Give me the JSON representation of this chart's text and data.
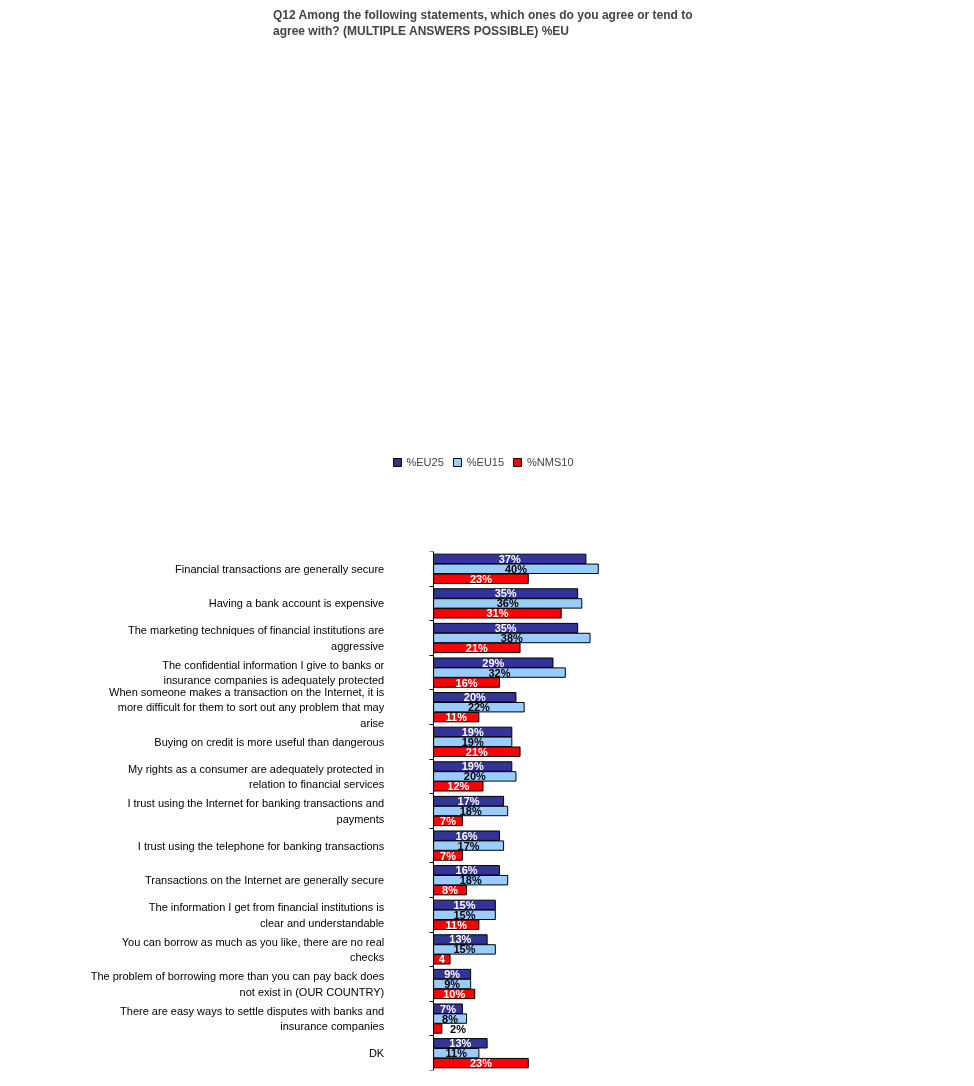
{
  "chart_data": {
    "type": "bar",
    "orientation": "horizontal",
    "title": "Q12 Among the following statements, which ones do you agree or tend to agree with? (MULTIPLE ANSWERS POSSIBLE) %EU",
    "legend": "top",
    "categories": [
      "Financial transactions are generally secure",
      "Having a bank account is expensive",
      "The marketing techniques of financial institutions are aggressive",
      "The confidential information I give to banks or insurance companies is adequately protected",
      "When someone makes a transaction on the Internet, it is more difficult for them to sort out any problem that may arise",
      "Buying on credit is more useful than dangerous",
      "My rights as a consumer are adequately protected in relation to financial services",
      "I trust using the Internet for banking transactions and payments",
      "I trust using the telephone for banking transactions",
      "Transactions on the Internet are generally secure",
      "The information I get from financial institutions is clear and understandable",
      "You can borrow as much as you like, there are no real checks",
      "The problem of borrowing more than you can pay back does not exist in (OUR COUNTRY)",
      "There are easy ways to settle disputes with banks and insurance companies",
      "DK"
    ],
    "series": [
      {
        "name": "%EU25",
        "color": "#333399",
        "values": [
          37,
          35,
          35,
          29,
          20,
          19,
          19,
          17,
          16,
          16,
          15,
          13,
          9,
          7,
          13
        ],
        "value_labels": [
          "37%",
          "35%",
          "35%",
          "29%",
          "20%",
          "19%",
          "19%",
          "17%",
          "16%",
          "16%",
          "15%",
          "13%",
          "9%",
          "7%",
          "13%"
        ]
      },
      {
        "name": "%EU15",
        "color": "#99ccff",
        "values": [
          40,
          36,
          38,
          32,
          22,
          19,
          20,
          18,
          17,
          18,
          15,
          15,
          9,
          8,
          11
        ],
        "value_labels": [
          "40%",
          "36%",
          "38%",
          "32%",
          "22%",
          "19%",
          "20%",
          "18%",
          "17%",
          "18%",
          "15%",
          "15%",
          "9%",
          "8%",
          "11%"
        ]
      },
      {
        "name": "%NMS10",
        "color": "#ff0000",
        "values": [
          23,
          31,
          21,
          16,
          11,
          21,
          12,
          7,
          7,
          8,
          11,
          4,
          10,
          2,
          23
        ],
        "value_labels": [
          "23%",
          "31%",
          "21%",
          "16%",
          "11%",
          "21%",
          "12%",
          "7%",
          "7%",
          "8%",
          "11%",
          "4",
          "10%",
          "2%",
          "23%"
        ]
      }
    ]
  }
}
